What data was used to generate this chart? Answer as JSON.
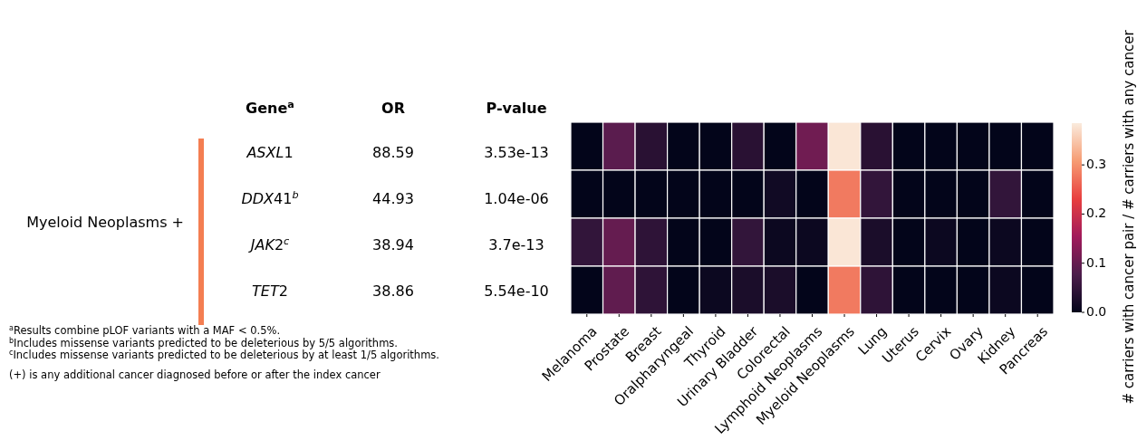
{
  "chart_data": [
    {
      "type": "other",
      "title": "Myeloid Neoplasms +",
      "xlabel": "Gene$^{a}$",
      "categories": [
        "ASXL1",
        "DDX41$^{b}$",
        "JAK2$^{c}$",
        "TET2"
      ],
      "series": [
        {
          "name": "OR",
          "values": [
            88.59,
            44.93,
            38.94,
            38.86
          ]
        },
        {
          "name": "P-value",
          "values": [
            3.53e-13,
            1.04e-06,
            3.7e-13,
            5.54e-10
          ]
        }
      ],
      "data_labels": true,
      "annotations": [
        "$^{a}$Results combine pLOF variants with a MAF < 0.5%.",
        "$^{b}$Includes missense variants predicted to be deleterious by 5/5 algorithms.",
        "$^{c}$Includes missense variants predicted to be deleterious by at least 1/5 algorithms.",
        "(+) is any additional cancer diagnosed before or after the index cancer"
      ]
    },
    {
      "type": "heatmap",
      "categories": [
        "Melanoma",
        "Prostate",
        "Breast",
        "Oralpharyngeal",
        "Thyroid",
        "Urinary Bladder",
        "Colorectal",
        "Lymphoid Neoplasms",
        "Myeloid Neoplasms",
        "Lung",
        "Uterus",
        "Cervix",
        "Ovary",
        "Kidney",
        "Pancreas"
      ],
      "y_categories": [
        null,
        null,
        null,
        null
      ],
      "cells": [
        [
          0,
          0.09,
          0.04,
          0,
          0,
          0.04,
          0,
          0.11,
          0.38,
          0.04,
          0,
          0,
          0,
          0,
          0
        ],
        [
          0,
          0,
          0,
          0,
          0,
          0,
          0.015,
          0,
          0.28,
          0.05,
          0,
          0,
          0,
          0.05,
          0
        ],
        [
          0.05,
          0.1,
          0.045,
          0,
          0,
          0.05,
          0.01,
          0.01,
          0.38,
          0.025,
          0,
          0.01,
          0,
          0.01,
          0
        ],
        [
          0,
          0.095,
          0.045,
          0,
          0.01,
          0.025,
          0.025,
          0,
          0.28,
          0.045,
          0,
          0,
          0,
          0.01,
          0
        ]
      ],
      "clim": [
        0,
        0.385
      ],
      "cticks": [
        {
          "value": 0,
          "label": "0.0"
        },
        0.1,
        0.2,
        0.3
      ],
      "clabel": "# carriers with cancer pair / # carriers with any cancer"
    }
  ]
}
